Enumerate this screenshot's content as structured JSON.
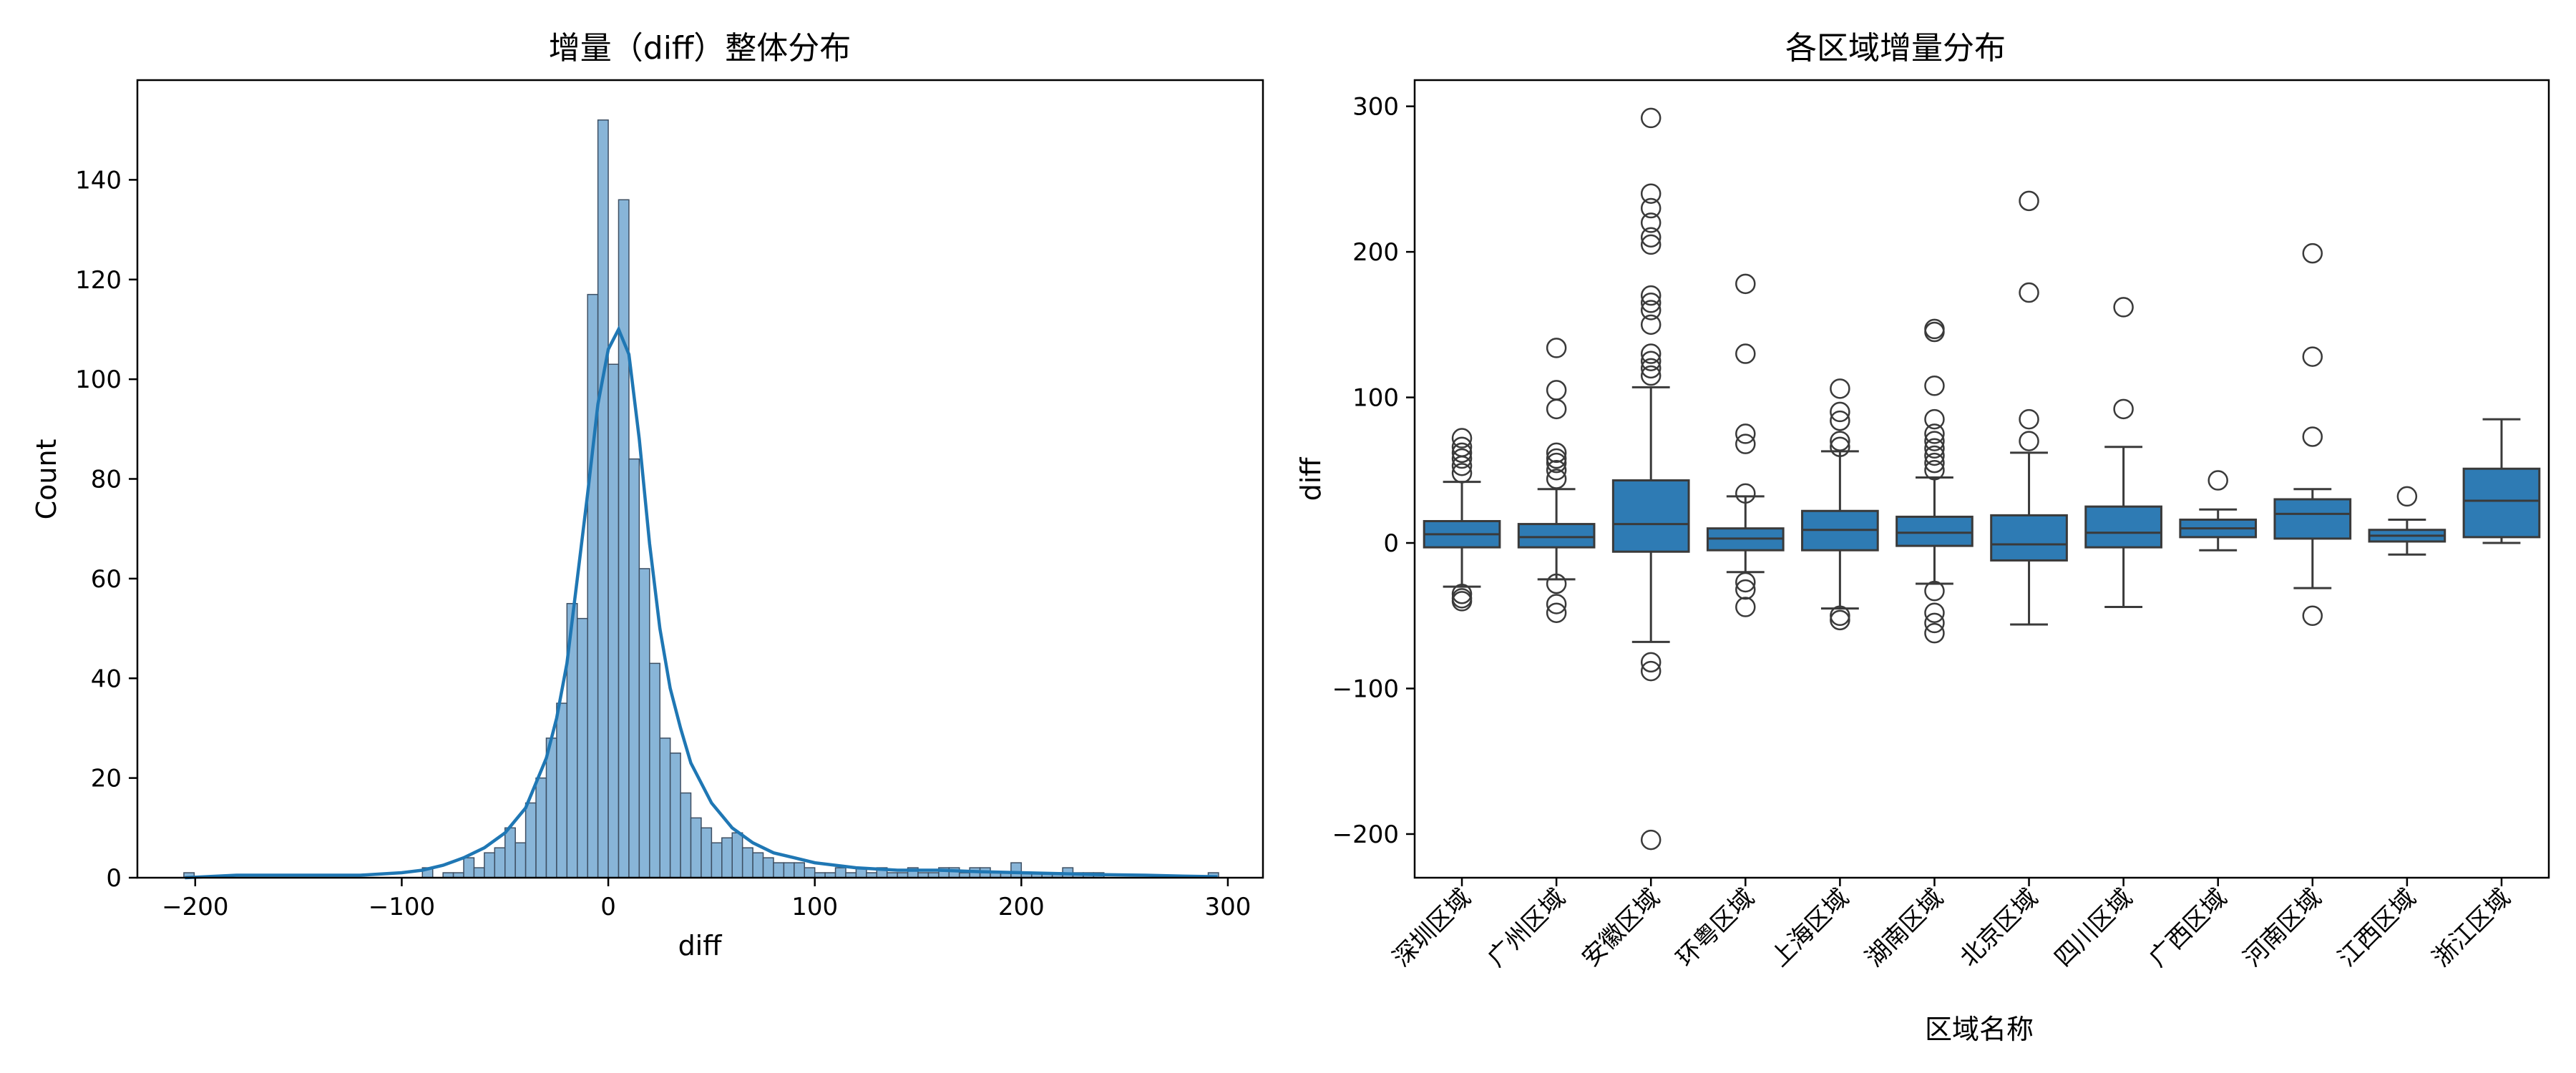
{
  "colors": {
    "bar_fill": "#88b5d8",
    "bar_edge": "#3d4f63",
    "kde": "#1f77b4",
    "box_fill": "#2e7bb4",
    "box_edge": "#3a3a3a"
  },
  "chart_data": [
    {
      "type": "histogram",
      "title": "增量（diff）整体分布",
      "xlabel": "diff",
      "ylabel": "Count",
      "xlim": [
        -228,
        317
      ],
      "ylim": [
        0,
        160
      ],
      "xticks": [
        -200,
        -100,
        0,
        100,
        200,
        300
      ],
      "yticks": [
        0,
        20,
        40,
        60,
        80,
        100,
        120,
        140
      ],
      "bin_start": -90,
      "bin_width": 5,
      "counts": [
        2,
        0,
        1,
        1,
        4,
        2,
        5,
        6,
        10,
        7,
        15,
        20,
        28,
        35,
        55,
        52,
        117,
        152,
        103,
        136,
        84,
        62,
        43,
        28,
        25,
        17,
        12,
        10,
        7,
        8,
        9,
        6,
        5,
        4,
        3,
        3,
        3,
        2,
        1,
        1,
        2,
        1,
        2,
        1,
        2,
        1,
        1,
        2,
        1,
        1,
        2,
        2,
        1,
        2,
        2,
        1,
        1,
        3,
        1,
        1,
        1,
        1,
        2,
        1,
        1,
        1
      ],
      "extra_bins": [
        {
          "x": -203,
          "count": 1
        },
        {
          "x": 293,
          "count": 1
        }
      ],
      "kde": {
        "x": [
          -205,
          -180,
          -160,
          -140,
          -120,
          -100,
          -90,
          -80,
          -70,
          -60,
          -50,
          -40,
          -30,
          -25,
          -20,
          -15,
          -10,
          -5,
          0,
          5,
          10,
          15,
          20,
          25,
          30,
          35,
          40,
          50,
          60,
          70,
          80,
          90,
          100,
          120,
          140,
          160,
          180,
          200,
          220,
          240,
          260,
          280,
          295
        ],
        "y": [
          0,
          0.5,
          0.5,
          0.5,
          0.5,
          1,
          1.5,
          2.5,
          4,
          6,
          9,
          14,
          24,
          32,
          43,
          60,
          77,
          95,
          106,
          110,
          105,
          88,
          67,
          50,
          38,
          30,
          23,
          15,
          10,
          7,
          5,
          4,
          3,
          2,
          1.5,
          1.5,
          1.2,
          1,
          0.8,
          0.6,
          0.5,
          0.3,
          0.2
        ]
      }
    },
    {
      "type": "box",
      "title": "各区域增量分布",
      "xlabel": "区域名称",
      "ylabel": "diff",
      "ylim": [
        -230,
        318
      ],
      "yticks": [
        -200,
        -100,
        0,
        100,
        200,
        300
      ],
      "categories": [
        "深圳区域",
        "广州区域",
        "安徽区域",
        "环粤区域",
        "上海区域",
        "湖南区域",
        "北京区域",
        "四川区域",
        "广西区域",
        "河南区域",
        "江西区域",
        "浙江区域"
      ],
      "boxes": [
        {
          "whislo": -30,
          "q1": -3,
          "med": 6,
          "q3": 15,
          "whishi": 42,
          "fliers": [
            -35,
            -38,
            -40,
            48,
            53,
            58,
            62,
            66,
            72
          ]
        },
        {
          "whislo": -25,
          "q1": -3,
          "med": 4,
          "q3": 13,
          "whishi": 37,
          "fliers": [
            -28,
            -42,
            -48,
            44,
            50,
            55,
            58,
            62,
            92,
            105,
            134
          ]
        },
        {
          "whislo": -68,
          "q1": -6,
          "med": 13,
          "q3": 43,
          "whishi": 107,
          "fliers": [
            -82,
            -88,
            -204,
            115,
            120,
            125,
            130,
            150,
            160,
            165,
            170,
            205,
            210,
            220,
            230,
            240,
            292
          ]
        },
        {
          "whislo": -20,
          "q1": -5,
          "med": 3,
          "q3": 10,
          "whishi": 32,
          "fliers": [
            -27,
            -32,
            -44,
            34,
            68,
            75,
            130,
            178
          ]
        },
        {
          "whislo": -45,
          "q1": -5,
          "med": 9,
          "q3": 22,
          "whishi": 63,
          "fliers": [
            -50,
            -53,
            66,
            70,
            84,
            90,
            106
          ]
        },
        {
          "whislo": -28,
          "q1": -2,
          "med": 7,
          "q3": 18,
          "whishi": 45,
          "fliers": [
            -33,
            -48,
            -55,
            -62,
            50,
            55,
            60,
            65,
            70,
            75,
            85,
            108,
            145,
            147
          ]
        },
        {
          "whislo": -56,
          "q1": -12,
          "med": -1,
          "q3": 19,
          "whishi": 62,
          "fliers": [
            70,
            85,
            172,
            235
          ]
        },
        {
          "whislo": -44,
          "q1": -3,
          "med": 7,
          "q3": 25,
          "whishi": 66,
          "fliers": [
            92,
            162
          ]
        },
        {
          "whislo": -5,
          "q1": 4,
          "med": 10,
          "q3": 16,
          "whishi": 23,
          "fliers": [
            43
          ]
        },
        {
          "whislo": -31,
          "q1": 3,
          "med": 20,
          "q3": 30,
          "whishi": 37,
          "fliers": [
            -50,
            73,
            128,
            199
          ]
        },
        {
          "whislo": -8,
          "q1": 1,
          "med": 5,
          "q3": 9,
          "whishi": 16,
          "fliers": [
            32
          ]
        },
        {
          "whislo": 0,
          "q1": 4,
          "med": 29,
          "q3": 51,
          "whishi": 85,
          "fliers": []
        }
      ]
    }
  ]
}
